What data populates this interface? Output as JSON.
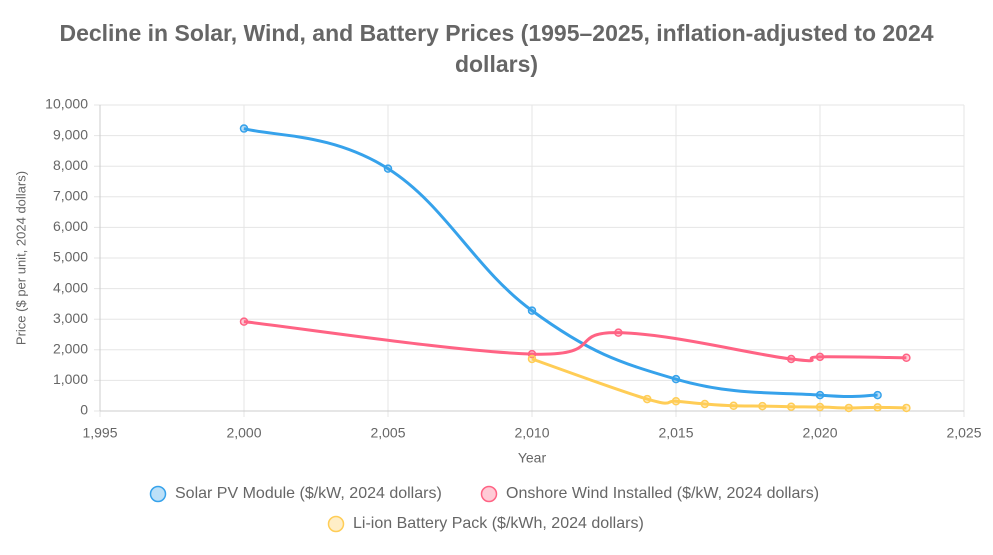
{
  "chart_data": {
    "type": "line",
    "title": "Decline in Solar, Wind, and Battery Prices (1995–2025, inflation-adjusted to 2024 dollars)",
    "x_label": "Year",
    "y_label": "Price ($ per unit, 2024 dollars)",
    "xlim": [
      1995,
      2025
    ],
    "xticks": [
      {
        "value": 1995,
        "label": "1,995"
      },
      {
        "value": 2000,
        "label": "2,000"
      },
      {
        "value": 2005,
        "label": "2,005"
      },
      {
        "value": 2010,
        "label": "2,010"
      },
      {
        "value": 2015,
        "label": "2,015"
      },
      {
        "value": 2020,
        "label": "2,020"
      },
      {
        "value": 2025,
        "label": "2,025"
      }
    ],
    "ylim": [
      0,
      10000
    ],
    "yticks": [
      0,
      {
        "value": 1000,
        "label": "1,000"
      },
      {
        "value": 2000,
        "label": "2,000"
      },
      {
        "value": 3000,
        "label": "3,000"
      },
      {
        "value": 4000,
        "label": "4,000"
      },
      {
        "value": 5000,
        "label": "5,000"
      },
      {
        "value": 6000,
        "label": "6,000"
      },
      {
        "value": 7000,
        "label": "7,000"
      },
      {
        "value": 8000,
        "label": "8,000"
      },
      {
        "value": 9000,
        "label": "9,000"
      },
      {
        "value": 10000,
        "label": "10,000"
      }
    ],
    "grid": true,
    "legend": "bottom",
    "series": [
      {
        "name": "Solar PV Module ($/kW, 2024 dollars)",
        "color": "#36a2eb",
        "x": [
          2000,
          2005,
          2010,
          2015,
          2020,
          2022
        ],
        "values": [
          9230,
          7920,
          3280,
          1040,
          520,
          520
        ]
      },
      {
        "name": "Onshore Wind Installed ($/kW, 2024 dollars)",
        "color": "#ff6384",
        "x": [
          2000,
          2010,
          2013,
          2019,
          2020,
          2023
        ],
        "values": [
          2920,
          1860,
          2560,
          1700,
          1770,
          1740
        ]
      },
      {
        "name": "Li-ion Battery Pack ($/kWh, 2024 dollars)",
        "color": "#ffcd56",
        "x": [
          2010,
          2014,
          2015,
          2016,
          2017,
          2018,
          2019,
          2020,
          2021,
          2022,
          2023
        ],
        "values": [
          1700,
          390,
          320,
          230,
          170,
          160,
          140,
          130,
          100,
          120,
          100
        ]
      }
    ]
  }
}
